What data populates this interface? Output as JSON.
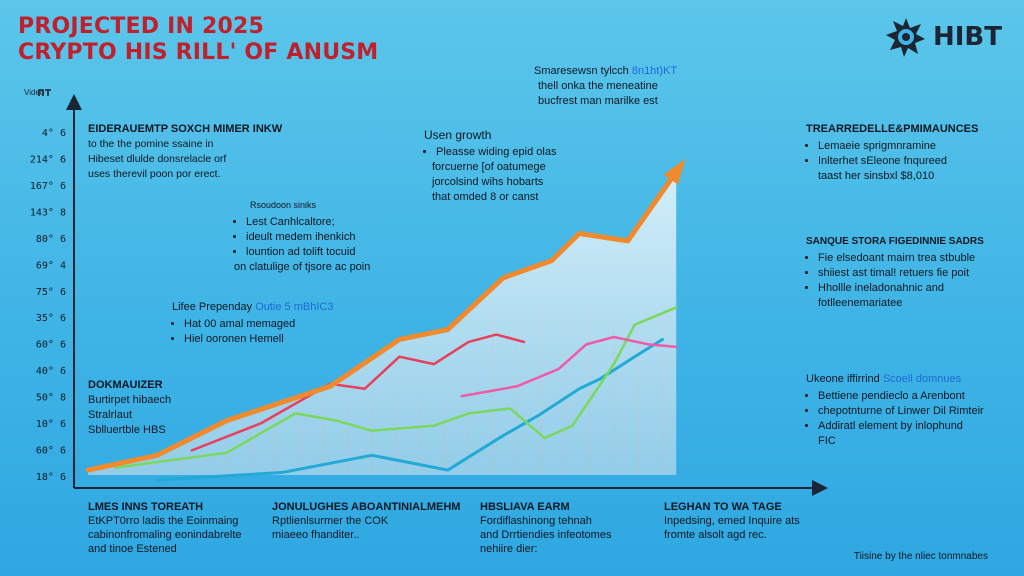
{
  "title_lines": [
    "PROJECTED IN 2025",
    "CRYPTO HIS RILL' OF ANUSM"
  ],
  "brand": {
    "name": "HIBT",
    "logo_icon": "star-gear-icon"
  },
  "video_label": "Video",
  "colors": {
    "title": "#c0202c",
    "orange": "#f08a2c",
    "red": "#e8405c",
    "pink": "#f05aa8",
    "green": "#7ad85c",
    "blue": "#23a9d6",
    "axis": "#1b2533"
  },
  "chart_data": {
    "type": "line",
    "y_ticks": [
      "4° 6",
      "214° 6",
      "167° 6",
      "143° 8",
      "80° 6",
      "69° 4",
      "75° 6",
      "35° 6",
      "60° 6",
      "40° 6",
      "50° 8",
      "10° 6",
      "60° 6",
      "18° 6"
    ],
    "y_range": [
      0,
      14
    ],
    "x_range": [
      0,
      100
    ],
    "series": [
      {
        "color": "orange",
        "points": [
          [
            0,
            0.2
          ],
          [
            10,
            0.8
          ],
          [
            20,
            2.2
          ],
          [
            35,
            3.6
          ],
          [
            45,
            5.5
          ],
          [
            52,
            5.9
          ],
          [
            60,
            8.0
          ],
          [
            67,
            8.7
          ],
          [
            71,
            9.8
          ],
          [
            78,
            9.5
          ],
          [
            85,
            12.3
          ]
        ]
      },
      {
        "color": "red",
        "points": [
          [
            15,
            1.0
          ],
          [
            25,
            2.1
          ],
          [
            35,
            3.7
          ],
          [
            40,
            3.5
          ],
          [
            45,
            4.8
          ],
          [
            50,
            4.5
          ],
          [
            55,
            5.4
          ],
          [
            59,
            5.7
          ],
          [
            63,
            5.4
          ]
        ]
      },
      {
        "color": "pink",
        "points": [
          [
            54,
            3.2
          ],
          [
            62,
            3.6
          ],
          [
            68,
            4.3
          ],
          [
            72,
            5.3
          ],
          [
            76,
            5.6
          ],
          [
            81,
            5.3
          ],
          [
            85,
            5.2
          ]
        ]
      },
      {
        "color": "green",
        "points": [
          [
            4,
            0.3
          ],
          [
            20,
            0.9
          ],
          [
            30,
            2.5
          ],
          [
            36,
            2.2
          ],
          [
            41,
            1.8
          ],
          [
            50,
            2.0
          ],
          [
            55,
            2.5
          ],
          [
            61,
            2.7
          ],
          [
            66,
            1.5
          ],
          [
            70,
            2.0
          ],
          [
            76,
            4.5
          ],
          [
            79,
            6.1
          ],
          [
            85,
            6.8
          ]
        ]
      },
      {
        "color": "blue",
        "points": [
          [
            10,
            -0.2
          ],
          [
            28,
            0.1
          ],
          [
            41,
            0.8
          ],
          [
            52,
            0.2
          ],
          [
            60,
            1.6
          ],
          [
            65,
            2.4
          ],
          [
            71,
            3.5
          ],
          [
            74,
            3.9
          ],
          [
            79,
            4.8
          ],
          [
            83,
            5.5
          ]
        ]
      }
    ]
  },
  "notes": {
    "top": {
      "lines": [
        "Smaresewsn tylcch",
        "thell onka the meneatine",
        "bucfrest man marilke est"
      ],
      "highlight": "8n1ht)KT"
    },
    "left_top": {
      "header": "EIDERAUEMTP SOXCH MIMER INKW",
      "lines": [
        "to the the pomine ssaine in",
        "Hibeset dlulde donsrelacle orf",
        "uses therevil poon por erect."
      ]
    },
    "left_mid": {
      "header": "Rsoudoon siniks",
      "items": [
        "Lest Canhlcaltore;",
        "ideult medem ihenkich",
        "lountion ad tolift tocuid"
      ],
      "extra": "on clatulige of tjsore ac poin"
    },
    "left_low": {
      "header_prefix": "Lifee Prependay",
      "header_highlight": "Outie 5 mBhIC3",
      "items": [
        "Hat 00 amal memaged",
        "Hiel ooronen Hemell"
      ]
    },
    "left_bottom": {
      "header": "DOKMAUIZER",
      "lines": [
        "Burtirpet hibaech",
        "Stralrlaut",
        "Sblluertble HBS"
      ]
    },
    "center": {
      "header": "Usen growth",
      "items": [
        "Pleasse widing epid olas"
      ],
      "lines": [
        "forcuerne [of oatumege",
        "jorcolsind wihs hobarts",
        "that omded 8 or canst"
      ]
    },
    "right_top": {
      "header": "TREARREDELLE&PMIMAUNCES",
      "items": [
        "Lemaeie sprigmnramine",
        "Inlterhet sEleone fnqureed"
      ],
      "extra": "taast her sinsbxl $8,010"
    },
    "right_mid": {
      "header": "SANQUE STORA FIGEDINNIE SADRS",
      "items": [
        "Fie elsedoant mairn trea stbuble",
        "shiiest ast timal! retuers fie poit",
        "Hhollle ineladonahnic and"
      ],
      "extra": "fotlleenemariatee"
    },
    "right_low": {
      "header": "Ukeone iffirrind",
      "header_highlight": "Scoell domnues",
      "items": [
        "Bettiene pendieclo a Arenbont",
        "chepotnturne of Linwer Dil Rimteir",
        "Addiratl element by inlophund"
      ],
      "extra": "FIC"
    }
  },
  "footer": [
    {
      "header": "LMES INNS TOREATH",
      "lines": [
        "EtKPT0rro ladis the Eoinmaing",
        "cabinonfromaling eonindabrelte",
        "and tinoe Estened"
      ]
    },
    {
      "header": "JONULUGHES ABOANTINIALMEHM",
      "lines": [
        "Rptlienlsurmer the COK",
        "miaeeo fhanditer.."
      ]
    },
    {
      "header": "HBSLIAVA EARM",
      "lines": [
        "Fordiflashinong tehnah",
        "and Drrtiendies infeotomes",
        "nehiire dier:"
      ]
    },
    {
      "header": "LEGHAN TO WA TAGE",
      "lines": [
        "Inpedsing, emed Inquire ats",
        "fromte alsolt agd rec."
      ]
    }
  ],
  "credit": "Tiisine by the nliec tonmnabes"
}
